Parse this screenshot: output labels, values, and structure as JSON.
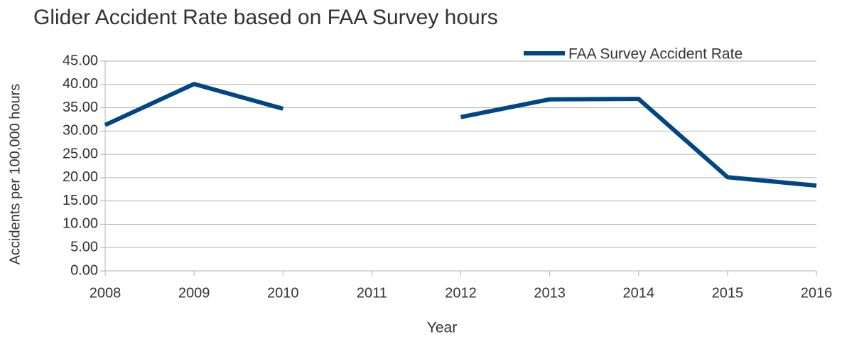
{
  "chart_data": {
    "type": "line",
    "title": "Glider Accident Rate based on FAA Survey hours",
    "x_label": "Year",
    "y_label": "Accidents per 100,000 hours",
    "x": [
      2008,
      2009,
      2010,
      2011,
      2012,
      2013,
      2014,
      2015,
      2016
    ],
    "series": [
      {
        "name": "FAA Survey Accident Rate",
        "color": "#004586",
        "values": [
          31.3,
          40.1,
          34.8,
          null,
          33.0,
          36.8,
          36.9,
          20.1,
          18.3
        ]
      }
    ],
    "xlim": [
      2008,
      2016
    ],
    "xticks": [
      2008,
      2009,
      2010,
      2011,
      2012,
      2013,
      2014,
      2015,
      2016
    ],
    "ylim": [
      0,
      45
    ],
    "yticks": [
      {
        "value": 0,
        "label": "0.00"
      },
      {
        "value": 5,
        "label": "5.00"
      },
      {
        "value": 10,
        "label": "10.00"
      },
      {
        "value": 15,
        "label": "15.00"
      },
      {
        "value": 20,
        "label": "20.00"
      },
      {
        "value": 25,
        "label": "25.00"
      },
      {
        "value": 30,
        "label": "30.00"
      },
      {
        "value": 35,
        "label": "35.00"
      },
      {
        "value": 40,
        "label": "40.00"
      },
      {
        "value": 45,
        "label": "45.00"
      }
    ],
    "grid": true,
    "legend": "top-right"
  }
}
